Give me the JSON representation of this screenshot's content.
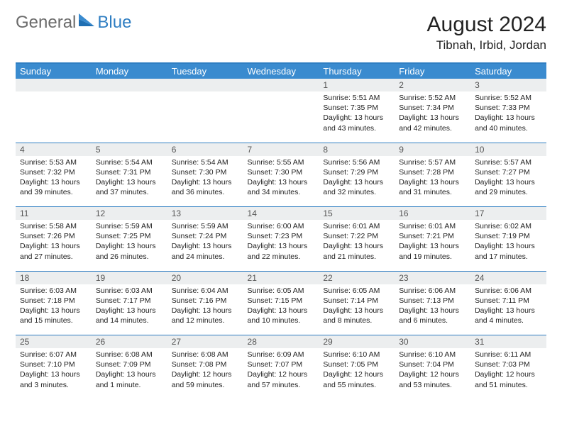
{
  "logo": {
    "textA": "General",
    "textB": "Blue"
  },
  "header": {
    "monthTitle": "August 2024",
    "location": "Tibnah, Irbid, Jordan"
  },
  "colors": {
    "accent": "#3a8bcf",
    "accentBorder": "#2f7ec2",
    "dayNumBg": "#eceeef",
    "text": "#222222",
    "logoGray": "#6b6b6b"
  },
  "dayNames": [
    "Sunday",
    "Monday",
    "Tuesday",
    "Wednesday",
    "Thursday",
    "Friday",
    "Saturday"
  ],
  "weeks": [
    [
      {
        "n": "",
        "sr": "",
        "ss": "",
        "dl1": "",
        "dl2": ""
      },
      {
        "n": "",
        "sr": "",
        "ss": "",
        "dl1": "",
        "dl2": ""
      },
      {
        "n": "",
        "sr": "",
        "ss": "",
        "dl1": "",
        "dl2": ""
      },
      {
        "n": "",
        "sr": "",
        "ss": "",
        "dl1": "",
        "dl2": ""
      },
      {
        "n": "1",
        "sr": "Sunrise: 5:51 AM",
        "ss": "Sunset: 7:35 PM",
        "dl1": "Daylight: 13 hours",
        "dl2": "and 43 minutes."
      },
      {
        "n": "2",
        "sr": "Sunrise: 5:52 AM",
        "ss": "Sunset: 7:34 PM",
        "dl1": "Daylight: 13 hours",
        "dl2": "and 42 minutes."
      },
      {
        "n": "3",
        "sr": "Sunrise: 5:52 AM",
        "ss": "Sunset: 7:33 PM",
        "dl1": "Daylight: 13 hours",
        "dl2": "and 40 minutes."
      }
    ],
    [
      {
        "n": "4",
        "sr": "Sunrise: 5:53 AM",
        "ss": "Sunset: 7:32 PM",
        "dl1": "Daylight: 13 hours",
        "dl2": "and 39 minutes."
      },
      {
        "n": "5",
        "sr": "Sunrise: 5:54 AM",
        "ss": "Sunset: 7:31 PM",
        "dl1": "Daylight: 13 hours",
        "dl2": "and 37 minutes."
      },
      {
        "n": "6",
        "sr": "Sunrise: 5:54 AM",
        "ss": "Sunset: 7:30 PM",
        "dl1": "Daylight: 13 hours",
        "dl2": "and 36 minutes."
      },
      {
        "n": "7",
        "sr": "Sunrise: 5:55 AM",
        "ss": "Sunset: 7:30 PM",
        "dl1": "Daylight: 13 hours",
        "dl2": "and 34 minutes."
      },
      {
        "n": "8",
        "sr": "Sunrise: 5:56 AM",
        "ss": "Sunset: 7:29 PM",
        "dl1": "Daylight: 13 hours",
        "dl2": "and 32 minutes."
      },
      {
        "n": "9",
        "sr": "Sunrise: 5:57 AM",
        "ss": "Sunset: 7:28 PM",
        "dl1": "Daylight: 13 hours",
        "dl2": "and 31 minutes."
      },
      {
        "n": "10",
        "sr": "Sunrise: 5:57 AM",
        "ss": "Sunset: 7:27 PM",
        "dl1": "Daylight: 13 hours",
        "dl2": "and 29 minutes."
      }
    ],
    [
      {
        "n": "11",
        "sr": "Sunrise: 5:58 AM",
        "ss": "Sunset: 7:26 PM",
        "dl1": "Daylight: 13 hours",
        "dl2": "and 27 minutes."
      },
      {
        "n": "12",
        "sr": "Sunrise: 5:59 AM",
        "ss": "Sunset: 7:25 PM",
        "dl1": "Daylight: 13 hours",
        "dl2": "and 26 minutes."
      },
      {
        "n": "13",
        "sr": "Sunrise: 5:59 AM",
        "ss": "Sunset: 7:24 PM",
        "dl1": "Daylight: 13 hours",
        "dl2": "and 24 minutes."
      },
      {
        "n": "14",
        "sr": "Sunrise: 6:00 AM",
        "ss": "Sunset: 7:23 PM",
        "dl1": "Daylight: 13 hours",
        "dl2": "and 22 minutes."
      },
      {
        "n": "15",
        "sr": "Sunrise: 6:01 AM",
        "ss": "Sunset: 7:22 PM",
        "dl1": "Daylight: 13 hours",
        "dl2": "and 21 minutes."
      },
      {
        "n": "16",
        "sr": "Sunrise: 6:01 AM",
        "ss": "Sunset: 7:21 PM",
        "dl1": "Daylight: 13 hours",
        "dl2": "and 19 minutes."
      },
      {
        "n": "17",
        "sr": "Sunrise: 6:02 AM",
        "ss": "Sunset: 7:19 PM",
        "dl1": "Daylight: 13 hours",
        "dl2": "and 17 minutes."
      }
    ],
    [
      {
        "n": "18",
        "sr": "Sunrise: 6:03 AM",
        "ss": "Sunset: 7:18 PM",
        "dl1": "Daylight: 13 hours",
        "dl2": "and 15 minutes."
      },
      {
        "n": "19",
        "sr": "Sunrise: 6:03 AM",
        "ss": "Sunset: 7:17 PM",
        "dl1": "Daylight: 13 hours",
        "dl2": "and 14 minutes."
      },
      {
        "n": "20",
        "sr": "Sunrise: 6:04 AM",
        "ss": "Sunset: 7:16 PM",
        "dl1": "Daylight: 13 hours",
        "dl2": "and 12 minutes."
      },
      {
        "n": "21",
        "sr": "Sunrise: 6:05 AM",
        "ss": "Sunset: 7:15 PM",
        "dl1": "Daylight: 13 hours",
        "dl2": "and 10 minutes."
      },
      {
        "n": "22",
        "sr": "Sunrise: 6:05 AM",
        "ss": "Sunset: 7:14 PM",
        "dl1": "Daylight: 13 hours",
        "dl2": "and 8 minutes."
      },
      {
        "n": "23",
        "sr": "Sunrise: 6:06 AM",
        "ss": "Sunset: 7:13 PM",
        "dl1": "Daylight: 13 hours",
        "dl2": "and 6 minutes."
      },
      {
        "n": "24",
        "sr": "Sunrise: 6:06 AM",
        "ss": "Sunset: 7:11 PM",
        "dl1": "Daylight: 13 hours",
        "dl2": "and 4 minutes."
      }
    ],
    [
      {
        "n": "25",
        "sr": "Sunrise: 6:07 AM",
        "ss": "Sunset: 7:10 PM",
        "dl1": "Daylight: 13 hours",
        "dl2": "and 3 minutes."
      },
      {
        "n": "26",
        "sr": "Sunrise: 6:08 AM",
        "ss": "Sunset: 7:09 PM",
        "dl1": "Daylight: 13 hours",
        "dl2": "and 1 minute."
      },
      {
        "n": "27",
        "sr": "Sunrise: 6:08 AM",
        "ss": "Sunset: 7:08 PM",
        "dl1": "Daylight: 12 hours",
        "dl2": "and 59 minutes."
      },
      {
        "n": "28",
        "sr": "Sunrise: 6:09 AM",
        "ss": "Sunset: 7:07 PM",
        "dl1": "Daylight: 12 hours",
        "dl2": "and 57 minutes."
      },
      {
        "n": "29",
        "sr": "Sunrise: 6:10 AM",
        "ss": "Sunset: 7:05 PM",
        "dl1": "Daylight: 12 hours",
        "dl2": "and 55 minutes."
      },
      {
        "n": "30",
        "sr": "Sunrise: 6:10 AM",
        "ss": "Sunset: 7:04 PM",
        "dl1": "Daylight: 12 hours",
        "dl2": "and 53 minutes."
      },
      {
        "n": "31",
        "sr": "Sunrise: 6:11 AM",
        "ss": "Sunset: 7:03 PM",
        "dl1": "Daylight: 12 hours",
        "dl2": "and 51 minutes."
      }
    ]
  ]
}
